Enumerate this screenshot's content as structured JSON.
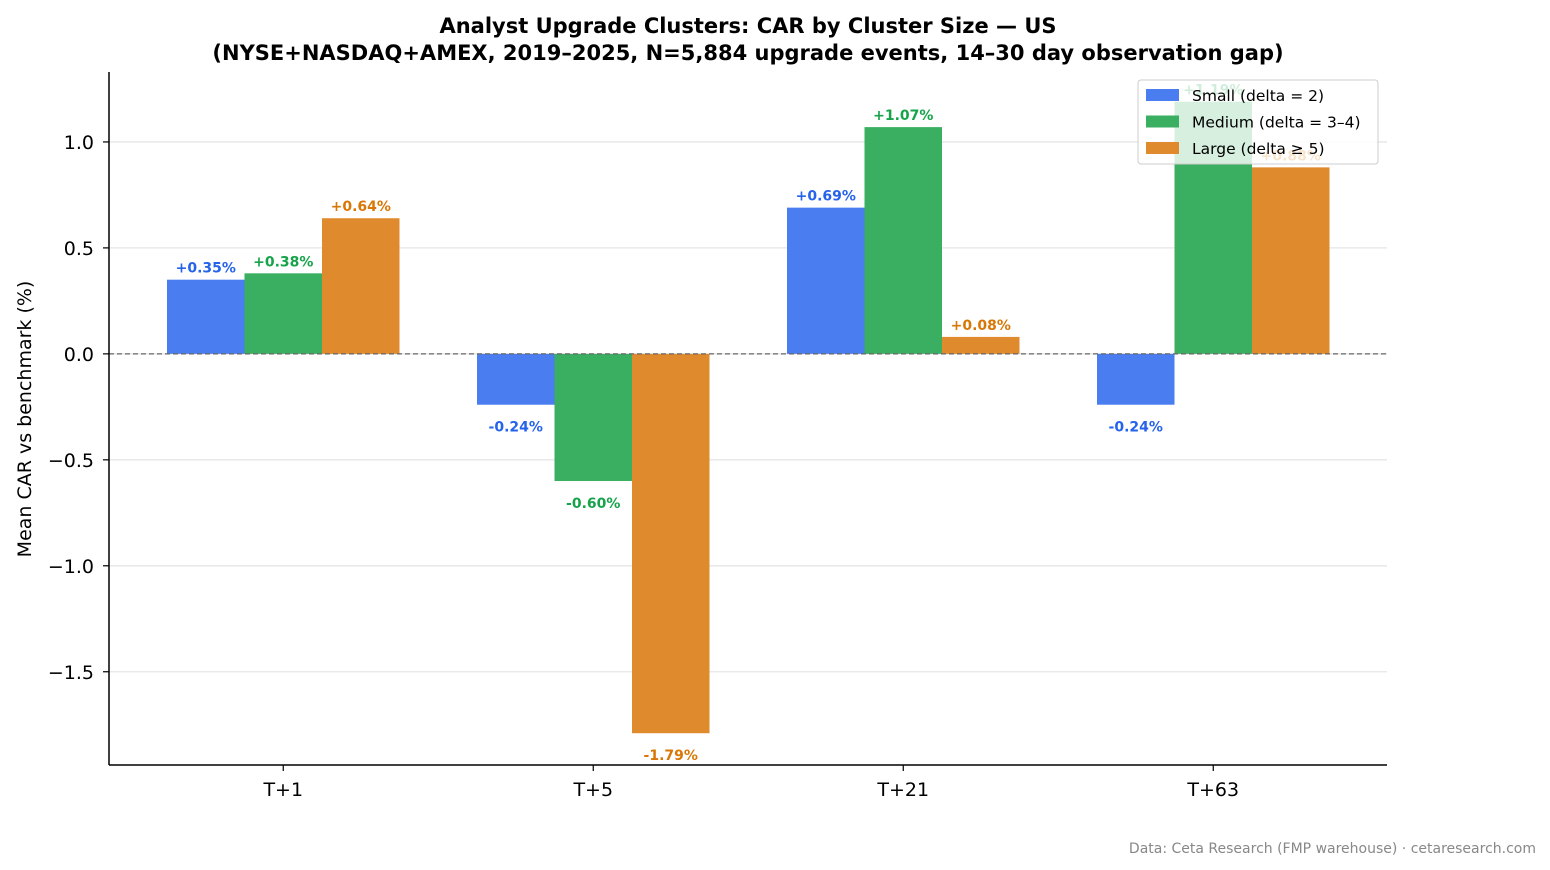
{
  "chart_data": {
    "type": "bar",
    "title": "Analyst Upgrade Clusters: CAR by Cluster Size — US",
    "subtitle": "(NYSE+NASDAQ+AMEX, 2019–2025, N=5,884 upgrade events, 14–30 day observation gap)",
    "xlabel": "",
    "ylabel": "Mean CAR vs benchmark (%)",
    "categories": [
      "T+1",
      "T+5",
      "T+21",
      "T+63"
    ],
    "series": [
      {
        "name": "Small (delta = 2)",
        "color": "#4a7ef0",
        "label_color": "#2563eb",
        "values": [
          0.35,
          -0.24,
          0.69,
          -0.24
        ],
        "labels": [
          "+0.35%",
          "-0.24%",
          "+0.69%",
          "-0.24%"
        ]
      },
      {
        "name": "Medium (delta = 3–4)",
        "color": "#3aaf62",
        "label_color": "#16a34a",
        "values": [
          0.38,
          -0.6,
          1.07,
          1.19
        ],
        "labels": [
          "+0.38%",
          "-0.60%",
          "+1.07%",
          "+1.19%"
        ]
      },
      {
        "name": "Large (delta ≥ 5)",
        "color": "#df8a2c",
        "label_color": "#d97706",
        "values": [
          0.64,
          -1.79,
          0.08,
          0.88
        ],
        "labels": [
          "+0.64%",
          "-1.79%",
          "+0.08%",
          "+0.88%"
        ]
      }
    ],
    "ylim": [
      -1.94,
      1.33
    ],
    "yticks": [
      1.0,
      0.5,
      0.0,
      -0.5,
      -1.0,
      -1.5
    ],
    "ytick_labels": [
      "1.0",
      "0.5",
      "0.0",
      "−0.5",
      "−1.0",
      "−1.5"
    ],
    "grid": "horizontal",
    "zero_line": "dashed",
    "legend_position": "top-right",
    "source": "Data: Ceta Research (FMP warehouse) · cetaresearch.com"
  }
}
